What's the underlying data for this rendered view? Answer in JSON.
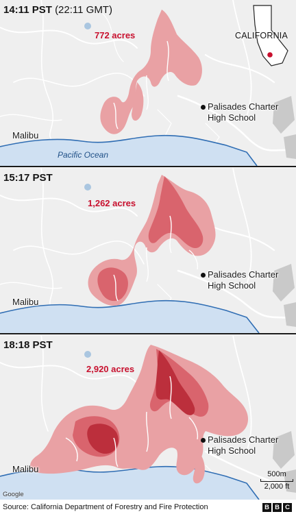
{
  "panels": [
    {
      "time": "14:11 PST",
      "time_sub": "(22:11 GMT)",
      "acres": "772 acres"
    },
    {
      "time": "15:17 PST",
      "time_sub": "",
      "acres": "1,262 acres"
    },
    {
      "time": "18:18 PST",
      "time_sub": "",
      "acres": "2,920 acres"
    }
  ],
  "places": {
    "malibu": "Malibu",
    "school_line1": "Palisades Charter",
    "school_line2": "High School",
    "ocean": "Pacific Ocean"
  },
  "inset": {
    "state": "CALIFORNIA"
  },
  "scale": {
    "metric": "500m",
    "imperial": "2,000 ft"
  },
  "attribution": {
    "google": "Google"
  },
  "footer": {
    "source": "Source: California Department of Forestry and Fire Protection",
    "logo": [
      "B",
      "B",
      "C"
    ]
  },
  "colors": {
    "land": "#efefef",
    "road": "#ffffff",
    "ocean": "#cfe0f2",
    "coast": "#2f6db3",
    "fire_light": "#e9a1a4",
    "fire_mid": "#d9646d",
    "fire_dark": "#bc2f3c",
    "acres_text": "#c8102e"
  }
}
